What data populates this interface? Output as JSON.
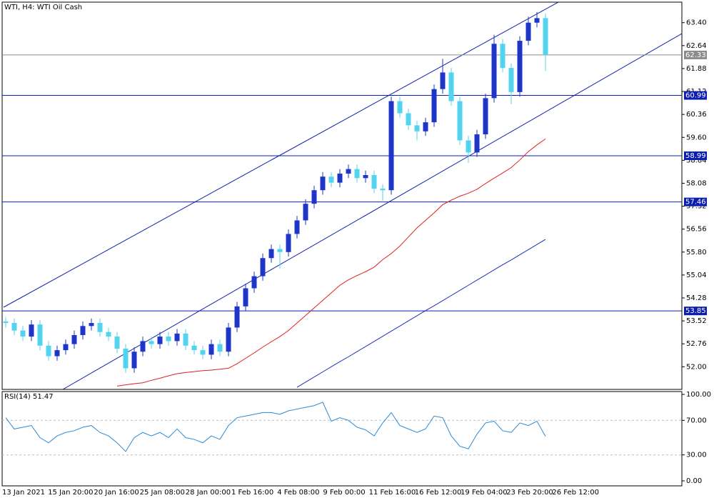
{
  "chart_data": [
    {
      "type": "candlestick",
      "title": "WTI, H4:  WTI Oil Cash",
      "xticks": [
        "13 Jan 2021",
        "15 Jan 20:00",
        "20 Jan 16:00",
        "25 Jan 08:00",
        "28 Jan 00:00",
        "1 Feb 16:00",
        "4 Feb 08:00",
        "9 Feb 00:00",
        "11 Feb 16:00",
        "16 Feb 12:00",
        "19 Feb 04:00",
        "23 Feb 20:00",
        "26 Feb 12:00"
      ],
      "open": [
        53.5,
        53.45,
        53.2,
        53.0,
        53.4,
        52.7,
        52.35,
        52.55,
        52.75,
        53.05,
        53.35,
        53.45,
        53.15,
        53.0,
        52.6,
        51.95,
        52.5,
        52.85,
        52.75,
        53.0,
        52.85,
        53.1,
        52.7,
        52.55,
        52.4,
        52.75,
        52.5,
        53.3,
        54.0,
        54.6,
        55.0,
        55.6,
        55.9,
        55.8,
        56.4,
        56.85,
        57.4,
        57.85,
        58.3,
        58.1,
        58.4,
        58.55,
        58.25,
        58.35,
        57.9,
        57.85,
        60.8,
        60.4,
        60.0,
        59.8,
        60.1,
        61.2,
        61.75,
        60.8,
        59.5,
        59.1,
        59.7,
        60.9,
        62.7,
        61.9,
        61.1,
        62.8,
        63.4,
        63.55
      ],
      "high": [
        53.65,
        53.6,
        53.35,
        53.55,
        53.55,
        52.85,
        52.7,
        52.9,
        53.2,
        53.5,
        53.6,
        53.6,
        53.3,
        53.15,
        52.75,
        52.65,
        53.0,
        53.0,
        53.15,
        53.15,
        53.25,
        53.25,
        52.85,
        52.7,
        52.9,
        52.9,
        53.45,
        54.15,
        54.75,
        55.15,
        55.75,
        56.05,
        56.05,
        56.55,
        57.0,
        57.55,
        58.0,
        58.45,
        58.45,
        58.55,
        58.7,
        58.7,
        58.5,
        58.5,
        58.05,
        60.95,
        60.95,
        60.55,
        60.15,
        60.25,
        61.35,
        62.2,
        61.9,
        60.95,
        59.65,
        59.85,
        61.05,
        63.0,
        62.85,
        62.05,
        62.95,
        63.6,
        63.75,
        63.7
      ],
      "low": [
        53.3,
        53.05,
        52.85,
        52.85,
        52.55,
        52.2,
        52.2,
        52.4,
        52.6,
        52.9,
        53.2,
        53.0,
        52.85,
        52.45,
        51.8,
        51.8,
        52.35,
        52.6,
        52.6,
        52.7,
        52.7,
        52.55,
        52.4,
        52.25,
        52.25,
        52.35,
        52.35,
        53.15,
        53.85,
        54.45,
        54.85,
        55.45,
        55.25,
        55.65,
        56.25,
        56.7,
        57.25,
        57.7,
        57.95,
        57.95,
        58.25,
        58.1,
        58.1,
        57.75,
        57.5,
        57.7,
        60.25,
        59.85,
        59.5,
        59.65,
        59.95,
        61.05,
        60.65,
        59.35,
        58.75,
        58.95,
        59.55,
        60.75,
        61.75,
        60.7,
        60.95,
        62.65,
        63.25,
        61.8
      ],
      "close": [
        53.45,
        53.2,
        53.0,
        53.4,
        52.7,
        52.35,
        52.55,
        52.75,
        53.05,
        53.35,
        53.45,
        53.15,
        53.0,
        52.6,
        51.95,
        52.5,
        52.85,
        52.75,
        53.0,
        52.85,
        53.1,
        52.7,
        52.55,
        52.4,
        52.75,
        52.5,
        53.3,
        54.0,
        54.6,
        55.0,
        55.6,
        55.9,
        55.8,
        56.4,
        56.85,
        57.4,
        57.85,
        58.3,
        58.1,
        58.4,
        58.55,
        58.25,
        58.35,
        57.9,
        57.85,
        60.8,
        60.4,
        60.0,
        59.8,
        60.1,
        61.2,
        61.75,
        60.8,
        59.5,
        59.1,
        59.7,
        60.9,
        62.7,
        61.9,
        61.1,
        62.8,
        63.4,
        63.55,
        62.33
      ],
      "up_color": "#1f35c8",
      "down_color": "#52d4ee",
      "moving_averages": [
        {
          "color": "#e02020",
          "values": [
            null,
            null,
            null,
            null,
            null,
            null,
            null,
            null,
            null,
            null,
            null,
            null,
            null,
            51.36,
            51.4,
            51.44,
            51.47,
            51.55,
            51.62,
            51.7,
            51.77,
            51.81,
            51.84,
            51.87,
            51.89,
            51.92,
            51.95,
            52.1,
            52.28,
            52.46,
            52.65,
            52.83,
            53.0,
            53.2,
            53.45,
            53.7,
            53.95,
            54.2,
            54.45,
            54.7,
            54.88,
            55.02,
            55.15,
            55.3,
            55.55,
            55.75,
            56.0,
            56.3,
            56.6,
            56.85,
            57.1,
            57.37,
            57.52,
            57.65,
            57.75,
            57.88,
            58.07,
            58.25,
            58.42,
            58.6,
            58.85,
            59.13,
            59.35,
            59.55
          ]
        },
        {
          "color": "#1f2fc0",
          "values": [
            null,
            null,
            null,
            null,
            null,
            null,
            null,
            null,
            null,
            null,
            null,
            null,
            null,
            null,
            null,
            null,
            null,
            null,
            null,
            null,
            null,
            null,
            null,
            null,
            null,
            null,
            null,
            null,
            null,
            null,
            null,
            null,
            null,
            null,
            51.32,
            51.49,
            51.66,
            51.83,
            52.0,
            52.17,
            52.33,
            52.5,
            52.67,
            52.84,
            53.01,
            53.18,
            53.35,
            53.52,
            53.69,
            53.86,
            54.02,
            54.19,
            54.36,
            54.53,
            54.7,
            54.87,
            55.04,
            55.21,
            55.38,
            55.54,
            55.71,
            55.88,
            56.05,
            56.22
          ]
        }
      ],
      "levels": [
        60.99,
        58.99,
        57.46,
        53.85
      ],
      "level_color": "#0a1fb0",
      "current_price": 62.33,
      "current_color": "#8c8c8c",
      "ylim": [
        51.25,
        64.08
      ],
      "yticks": [
        {
          "value": 63.4,
          "label": "63.40"
        },
        62.64,
        61.88,
        61.12,
        60.36,
        {
          "value": 59.6,
          "label": "59.60"
        },
        58.84,
        58.08,
        57.32,
        56.56,
        {
          "value": 55.8,
          "label": "55.80"
        },
        55.04,
        54.28,
        53.52,
        52.76,
        {
          "value": 52,
          "label": "52.00"
        }
      ]
    },
    {
      "type": "line",
      "title": "RSI(14) 51.47",
      "color": "#2a8ad8",
      "values": [
        73,
        60,
        62,
        64,
        50,
        44,
        52,
        56,
        58,
        62,
        64,
        56,
        52,
        44,
        34,
        50,
        56,
        52,
        56,
        50,
        60,
        50,
        48,
        44,
        52,
        48,
        64,
        73,
        75,
        77,
        79,
        79,
        77,
        81,
        83,
        85,
        87,
        91,
        69,
        73,
        70,
        62,
        59,
        52,
        67,
        79,
        64,
        60,
        56,
        60,
        75,
        73,
        52,
        40,
        37,
        54,
        67,
        69,
        58,
        56,
        67,
        64,
        69,
        51.47
      ],
      "ylim": [
        0,
        100
      ],
      "yticks": [
        {
          "value": 100,
          "label": "100.00"
        },
        {
          "value": 70,
          "label": "70.00"
        },
        {
          "value": 30,
          "label": "30.00"
        },
        {
          "value": 0,
          "label": "0.00"
        }
      ],
      "levels": [
        70,
        30
      ]
    }
  ]
}
